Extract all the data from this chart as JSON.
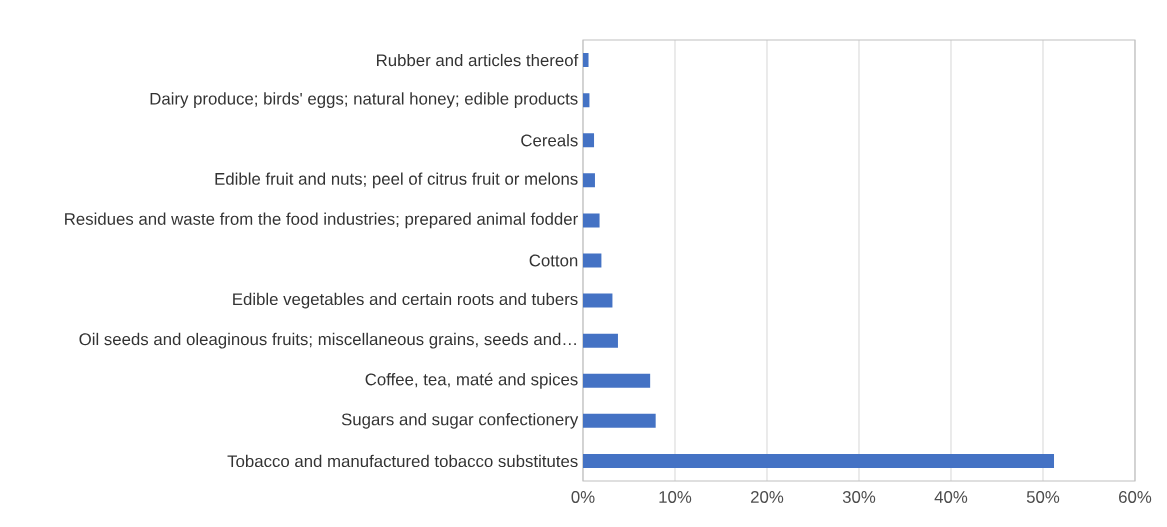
{
  "chart_data": {
    "type": "bar",
    "orientation": "horizontal",
    "categories": [
      "Rubber and articles thereof",
      "Dairy produce; birds' eggs; natural honey; edible products",
      "Cereals",
      "Edible fruit and nuts; peel of citrus fruit or melons",
      "Residues and waste from the food industries; prepared animal fodder",
      "Cotton",
      "Edible vegetables and certain roots and tubers",
      "Oil seeds and oleaginous fruits; miscellaneous grains, seeds and…",
      "Coffee, tea, maté and spices",
      "Sugars and sugar confectionery",
      "Tobacco and manufactured tobacco substitutes"
    ],
    "values": [
      0.6,
      0.7,
      1.2,
      1.3,
      1.8,
      2.0,
      3.2,
      3.8,
      7.3,
      7.9,
      51.2
    ],
    "color": "#4472c4",
    "xlim": [
      0,
      60
    ],
    "xticks": [
      {
        "value": 0,
        "label": "0%"
      },
      {
        "value": 10,
        "label": "10%"
      },
      {
        "value": 20,
        "label": "20%"
      },
      {
        "value": 30,
        "label": "30%"
      },
      {
        "value": 40,
        "label": "40%"
      },
      {
        "value": 50,
        "label": "50%"
      },
      {
        "value": 60,
        "label": "60%"
      }
    ],
    "grid": "x"
  }
}
